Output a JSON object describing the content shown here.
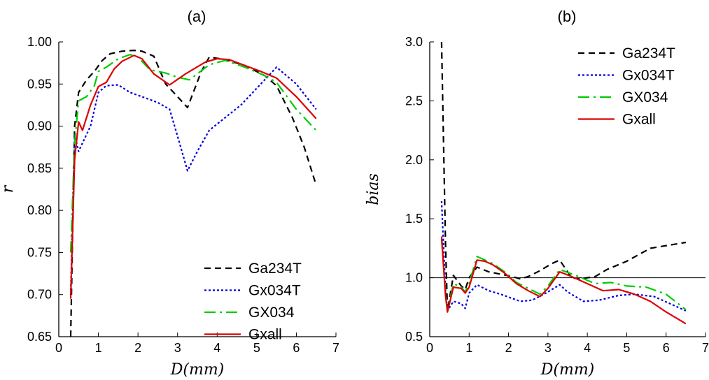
{
  "chart_data": [
    {
      "type": "line",
      "title": "(a)",
      "xlabel": "D(mm)",
      "ylabel": "r",
      "xlim": [
        0,
        7
      ],
      "ylim": [
        0.65,
        1.0
      ],
      "xticks": [
        0,
        1,
        2,
        3,
        4,
        5,
        6,
        7
      ],
      "yticks": [
        0.65,
        0.7,
        0.75,
        0.8,
        0.85,
        0.9,
        0.95,
        1.0
      ],
      "ytick_labels": [
        "0.65",
        "0.70",
        "0.75",
        "0.80",
        "0.85",
        "0.90",
        "0.95",
        "1.00"
      ],
      "grid": false,
      "legend_position": "bottom-right",
      "series": [
        {
          "name": "Ga234T",
          "color": "#000000",
          "dash": "dash",
          "x": [
            0.3,
            0.4,
            0.5,
            0.7,
            0.9,
            1.1,
            1.3,
            1.6,
            1.9,
            2.1,
            2.4,
            2.7,
            3.0,
            3.25,
            3.6,
            3.8,
            4.2,
            4.7,
            5.2,
            5.5,
            5.9,
            6.2,
            6.5
          ],
          "y": [
            0.65,
            0.9,
            0.94,
            0.955,
            0.965,
            0.978,
            0.986,
            0.989,
            0.99,
            0.989,
            0.983,
            0.95,
            0.935,
            0.922,
            0.965,
            0.982,
            0.979,
            0.972,
            0.96,
            0.948,
            0.91,
            0.875,
            0.83
          ]
        },
        {
          "name": "Gx034T",
          "color": "#0000dd",
          "dash": "dot",
          "x": [
            0.3,
            0.4,
            0.5,
            0.6,
            0.8,
            1.0,
            1.2,
            1.5,
            1.8,
            2.1,
            2.5,
            2.8,
            3.05,
            3.25,
            3.5,
            3.8,
            4.2,
            4.6,
            5.0,
            5.5,
            6.0,
            6.5
          ],
          "y": [
            0.7,
            0.89,
            0.87,
            0.88,
            0.9,
            0.94,
            0.948,
            0.949,
            0.94,
            0.935,
            0.928,
            0.92,
            0.88,
            0.847,
            0.87,
            0.895,
            0.91,
            0.925,
            0.945,
            0.97,
            0.95,
            0.92
          ]
        },
        {
          "name": "GX034",
          "color": "#00cc00",
          "dash": "longdash",
          "x": [
            0.3,
            0.4,
            0.5,
            0.7,
            0.9,
            1.0,
            1.2,
            1.5,
            1.8,
            2.0,
            2.3,
            2.7,
            3.0,
            3.3,
            3.8,
            4.2,
            4.7,
            5.2,
            5.5,
            6.0,
            6.5
          ],
          "y": [
            0.75,
            0.88,
            0.93,
            0.935,
            0.948,
            0.965,
            0.97,
            0.98,
            0.985,
            0.982,
            0.967,
            0.963,
            0.958,
            0.955,
            0.973,
            0.978,
            0.97,
            0.96,
            0.952,
            0.92,
            0.895
          ]
        },
        {
          "name": "Gxall",
          "color": "#dd0000",
          "dash": "solid",
          "x": [
            0.3,
            0.4,
            0.5,
            0.6,
            0.7,
            0.8,
            1.0,
            1.2,
            1.4,
            1.6,
            1.9,
            2.1,
            2.4,
            2.8,
            3.2,
            3.7,
            4.0,
            4.3,
            4.7,
            5.1,
            5.5,
            6.0,
            6.5
          ],
          "y": [
            0.695,
            0.86,
            0.905,
            0.895,
            0.91,
            0.925,
            0.947,
            0.952,
            0.968,
            0.977,
            0.984,
            0.98,
            0.962,
            0.949,
            0.962,
            0.976,
            0.98,
            0.979,
            0.972,
            0.965,
            0.957,
            0.935,
            0.909
          ]
        }
      ]
    },
    {
      "type": "line",
      "title": "(b)",
      "xlabel": "D(mm)",
      "ylabel": "bias",
      "xlim": [
        0,
        7
      ],
      "ylim": [
        0.5,
        3.0
      ],
      "xticks": [
        0,
        1,
        2,
        3,
        4,
        5,
        6,
        7
      ],
      "yticks": [
        0.5,
        1.0,
        1.5,
        2.0,
        2.5,
        3.0
      ],
      "ytick_labels": [
        "0.5",
        "1.0",
        "1.5",
        "2.0",
        "2.5",
        "3.0"
      ],
      "reference_line_y": 1.0,
      "grid": false,
      "legend_position": "top-right",
      "series": [
        {
          "name": "Ga234T",
          "color": "#000000",
          "dash": "dash",
          "x": [
            0.3,
            0.4,
            0.45,
            0.6,
            0.8,
            0.9,
            1.0,
            1.2,
            1.5,
            1.8,
            2.1,
            2.3,
            2.5,
            2.8,
            3.1,
            3.3,
            3.6,
            3.8,
            4.2,
            4.5,
            5.0,
            5.6,
            6.5
          ],
          "y": [
            3.0,
            1.3,
            0.72,
            1.02,
            0.93,
            0.9,
            1.0,
            1.09,
            1.05,
            1.03,
            1.01,
            0.99,
            1.01,
            1.06,
            1.12,
            1.15,
            1.0,
            0.99,
            1.01,
            1.07,
            1.14,
            1.25,
            1.3
          ]
        },
        {
          "name": "Gx034T",
          "color": "#0000dd",
          "dash": "dot",
          "x": [
            0.3,
            0.4,
            0.45,
            0.6,
            0.8,
            0.9,
            1.0,
            1.2,
            1.5,
            1.8,
            2.3,
            2.6,
            2.9,
            3.3,
            3.5,
            3.9,
            4.3,
            4.8,
            5.2,
            5.7,
            6.5
          ],
          "y": [
            1.65,
            0.9,
            0.72,
            0.8,
            0.78,
            0.74,
            0.87,
            0.94,
            0.89,
            0.86,
            0.8,
            0.81,
            0.86,
            0.94,
            0.88,
            0.8,
            0.81,
            0.85,
            0.86,
            0.84,
            0.72
          ]
        },
        {
          "name": "GX034",
          "color": "#00cc00",
          "dash": "longdash",
          "x": [
            0.3,
            0.4,
            0.45,
            0.6,
            0.8,
            0.9,
            1.0,
            1.2,
            1.4,
            1.6,
            1.9,
            2.2,
            2.5,
            2.8,
            3.0,
            3.3,
            3.7,
            4.2,
            4.6,
            5.0,
            5.5,
            6.0,
            6.5
          ],
          "y": [
            1.33,
            0.88,
            0.72,
            0.95,
            0.92,
            0.88,
            0.95,
            1.18,
            1.15,
            1.12,
            1.05,
            0.96,
            0.91,
            0.86,
            0.93,
            1.07,
            1.02,
            0.95,
            0.96,
            0.93,
            0.92,
            0.86,
            0.73
          ]
        },
        {
          "name": "Gxall",
          "color": "#dd0000",
          "dash": "solid",
          "x": [
            0.3,
            0.4,
            0.45,
            0.6,
            0.8,
            0.9,
            1.0,
            1.2,
            1.4,
            1.6,
            1.9,
            2.2,
            2.5,
            2.8,
            3.0,
            3.3,
            3.6,
            4.0,
            4.4,
            4.8,
            5.2,
            5.6,
            6.0,
            6.5
          ],
          "y": [
            1.35,
            0.85,
            0.71,
            0.92,
            0.91,
            0.87,
            0.92,
            1.15,
            1.14,
            1.11,
            1.04,
            0.95,
            0.89,
            0.84,
            0.91,
            1.05,
            1.01,
            0.95,
            0.89,
            0.9,
            0.86,
            0.8,
            0.71,
            0.61
          ]
        }
      ]
    }
  ]
}
